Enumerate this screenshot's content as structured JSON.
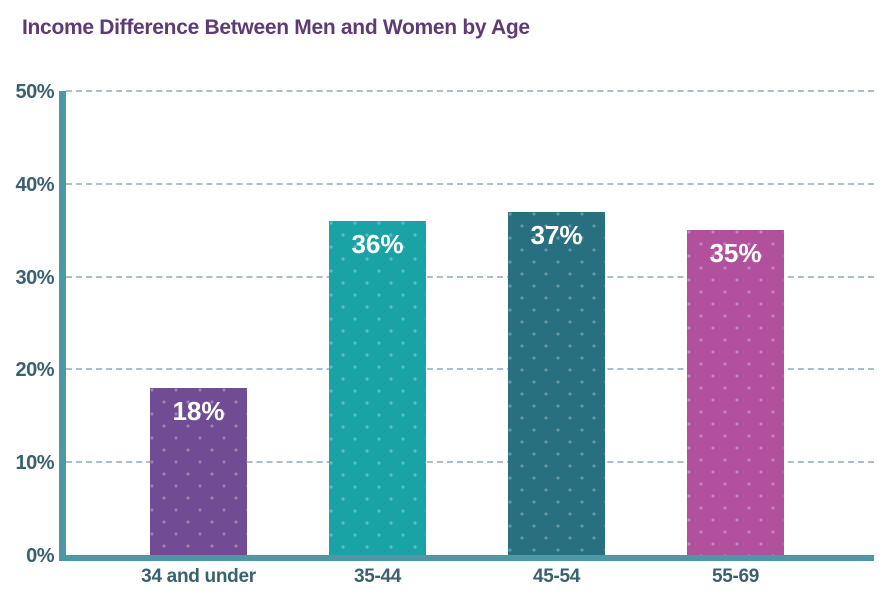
{
  "chart_data": {
    "type": "bar",
    "title": "Income Difference Between Men and Women by Age",
    "categories": [
      "34 and under",
      "35-44",
      "45-54",
      "55-69"
    ],
    "values": [
      18,
      36,
      37,
      35
    ],
    "value_labels": [
      "18%",
      "36%",
      "37%",
      "35%"
    ],
    "bar_colors": [
      "#6f4c93",
      "#19a3a4",
      "#28707f",
      "#b1509d"
    ],
    "xlabel": "",
    "ylabel": "",
    "ylim": [
      0,
      50
    ],
    "yticks": [
      {
        "value": 0,
        "label": "0%"
      },
      {
        "value": 10,
        "label": "10%"
      },
      {
        "value": 20,
        "label": "20%"
      },
      {
        "value": 30,
        "label": "30%"
      },
      {
        "value": 40,
        "label": "40%"
      },
      {
        "value": 50,
        "label": "50%"
      }
    ],
    "grid": "horizontal-dashed",
    "legend": "none",
    "colors": {
      "title": "#5d3b73",
      "axis": "#4d97a6",
      "tick_label": "#3a616f",
      "gridline": "#a9bfcc",
      "bar_label": "#ffffff",
      "background": "#ffffff"
    }
  }
}
